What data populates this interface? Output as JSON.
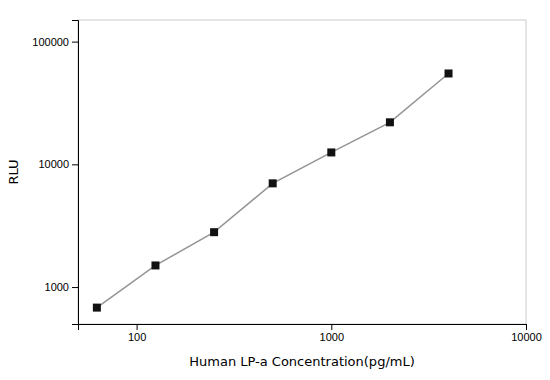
{
  "chart_data": {
    "type": "line",
    "xlabel": "Human LP-a Concentration(pg/mL)",
    "ylabel": "RLU",
    "x": [
      62.5,
      125,
      250,
      500,
      1000,
      2000,
      4000
    ],
    "values": [
      680,
      1500,
      2800,
      7000,
      12500,
      22000,
      55000
    ],
    "xlim": [
      50,
      10000
    ],
    "ylim": [
      500,
      150000
    ],
    "xticks": [
      100,
      1000,
      10000
    ],
    "yticks": [
      1000,
      10000,
      100000
    ],
    "log": true,
    "grid": false,
    "color": "#111111",
    "marker": "square",
    "line_style": "solid"
  }
}
